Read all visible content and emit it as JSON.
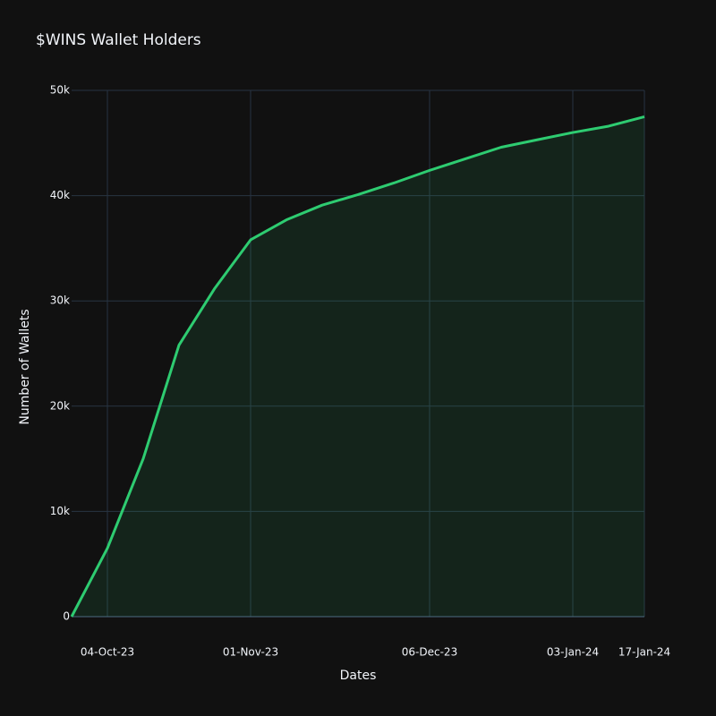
{
  "chart_data": {
    "type": "area",
    "title": "$WINS Wallet Holders",
    "x_label": "Dates",
    "y_label": "Number of Wallets",
    "x": [
      "2023-09-27",
      "2023-10-04",
      "2023-10-11",
      "2023-10-18",
      "2023-10-25",
      "2023-11-01",
      "2023-11-08",
      "2023-11-15",
      "2023-11-22",
      "2023-11-29",
      "2023-12-06",
      "2023-12-13",
      "2023-12-20",
      "2023-12-27",
      "2024-01-03",
      "2024-01-10",
      "2024-01-17"
    ],
    "series": [
      {
        "name": "Wallets",
        "color": "#2ecc71",
        "values": [
          0,
          6500,
          15000,
          25800,
          31200,
          35800,
          37700,
          39100,
          40100,
          41200,
          42400,
          43500,
          44600,
          45300,
          46000,
          46600,
          47500
        ]
      }
    ],
    "xlim": [
      "2023-09-27",
      "2024-01-17"
    ],
    "xticks": [
      {
        "value": "2023-10-04",
        "label": "04-Oct-23"
      },
      {
        "value": "2023-11-01",
        "label": "01-Nov-23"
      },
      {
        "value": "2023-12-06",
        "label": "06-Dec-23"
      },
      {
        "value": "2024-01-03",
        "label": "03-Jan-24"
      },
      {
        "value": "2024-01-17",
        "label": "17-Jan-24"
      }
    ],
    "ylim": [
      0,
      50000
    ],
    "yticks": [
      0,
      {
        "value": 10000,
        "label": "10k"
      },
      {
        "value": 20000,
        "label": "20k"
      },
      {
        "value": 30000,
        "label": "30k"
      },
      {
        "value": 40000,
        "label": "40k"
      },
      {
        "value": 50000,
        "label": "50k"
      }
    ],
    "grid": true
  }
}
